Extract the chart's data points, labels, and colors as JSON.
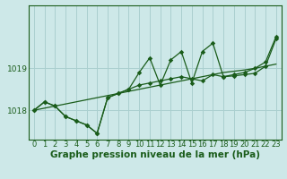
{
  "xlabel": "Graphe pression niveau de la mer (hPa)",
  "ylabel": "",
  "bg_color": "#cde8e8",
  "plot_bg_color": "#cde8e8",
  "grid_color": "#aacfcf",
  "line_color": "#1a5c1a",
  "x_ticks": [
    0,
    1,
    2,
    3,
    4,
    5,
    6,
    7,
    8,
    9,
    10,
    11,
    12,
    13,
    14,
    15,
    16,
    17,
    18,
    19,
    20,
    21,
    22,
    23
  ],
  "y_ticks": [
    1018,
    1019
  ],
  "ylim": [
    1017.3,
    1020.5
  ],
  "xlim": [
    -0.5,
    23.5
  ],
  "line_trend": [
    1018.0,
    1018.05,
    1018.1,
    1018.15,
    1018.2,
    1018.25,
    1018.3,
    1018.35,
    1018.4,
    1018.45,
    1018.5,
    1018.55,
    1018.6,
    1018.65,
    1018.7,
    1018.75,
    1018.8,
    1018.85,
    1018.9,
    1018.93,
    1018.96,
    1019.0,
    1019.05,
    1019.1
  ],
  "line_jagged": [
    1018.0,
    1018.2,
    1018.1,
    1017.85,
    1017.75,
    1017.65,
    1017.45,
    1018.3,
    1018.4,
    1018.5,
    1018.9,
    1019.25,
    1018.6,
    1019.2,
    1019.4,
    1018.65,
    1019.4,
    1019.6,
    1018.8,
    1018.85,
    1018.9,
    1019.0,
    1019.15,
    1019.75
  ],
  "line_smooth": [
    1018.0,
    1018.2,
    1018.1,
    1017.85,
    1017.75,
    1017.65,
    1017.45,
    1018.3,
    1018.4,
    1018.5,
    1018.6,
    1018.65,
    1018.7,
    1018.75,
    1018.8,
    1018.75,
    1018.7,
    1018.85,
    1018.8,
    1018.82,
    1018.85,
    1018.88,
    1019.05,
    1019.7
  ],
  "xlabel_fontsize": 7.5,
  "tick_fontsize": 6.0
}
